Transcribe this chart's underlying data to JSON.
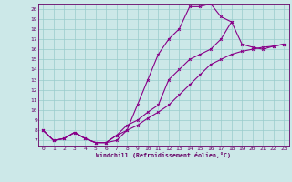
{
  "bg_color": "#cce8e8",
  "line_color": "#880088",
  "grid_color": "#99cccc",
  "axis_label_color": "#660066",
  "xlabel": "Windchill (Refroidissement éolien,°C)",
  "xlim": [
    -0.5,
    23.5
  ],
  "ylim": [
    6.5,
    20.5
  ],
  "xticks": [
    0,
    1,
    2,
    3,
    4,
    5,
    6,
    7,
    8,
    9,
    10,
    11,
    12,
    13,
    14,
    15,
    16,
    17,
    18,
    19,
    20,
    21,
    22,
    23
  ],
  "yticks": [
    7,
    8,
    9,
    10,
    11,
    12,
    13,
    14,
    15,
    16,
    17,
    18,
    19,
    20
  ],
  "line1_x": [
    0,
    1,
    2,
    3,
    4,
    5,
    6,
    7,
    8,
    9,
    10,
    11,
    12,
    13,
    14,
    15,
    16,
    17,
    18
  ],
  "line1_y": [
    8.0,
    7.0,
    7.2,
    7.8,
    7.2,
    6.8,
    6.8,
    7.5,
    8.0,
    10.5,
    13.0,
    15.5,
    17.0,
    18.0,
    20.2,
    20.2,
    20.5,
    19.2,
    18.7
  ],
  "line2_x": [
    0,
    1,
    2,
    3,
    4,
    5,
    6,
    7,
    8,
    9,
    10,
    11,
    12,
    13,
    14,
    15,
    16,
    17,
    18,
    19,
    20,
    21,
    22,
    23
  ],
  "line2_y": [
    8.0,
    7.0,
    7.2,
    7.8,
    7.2,
    6.8,
    6.8,
    7.5,
    8.5,
    9.0,
    9.8,
    10.5,
    13.0,
    14.0,
    15.0,
    15.5,
    16.0,
    17.0,
    18.7,
    16.5,
    16.2,
    16.0,
    16.3,
    16.5
  ],
  "line3_x": [
    0,
    1,
    2,
    3,
    4,
    5,
    6,
    7,
    8,
    9,
    10,
    11,
    12,
    13,
    14,
    15,
    16,
    17,
    18,
    19,
    20,
    21,
    22,
    23
  ],
  "line3_y": [
    8.0,
    7.0,
    7.2,
    7.8,
    7.2,
    6.8,
    6.8,
    7.0,
    8.0,
    8.5,
    9.2,
    9.8,
    10.5,
    11.5,
    12.5,
    13.5,
    14.5,
    15.0,
    15.5,
    15.8,
    16.0,
    16.2,
    16.3,
    16.5
  ]
}
